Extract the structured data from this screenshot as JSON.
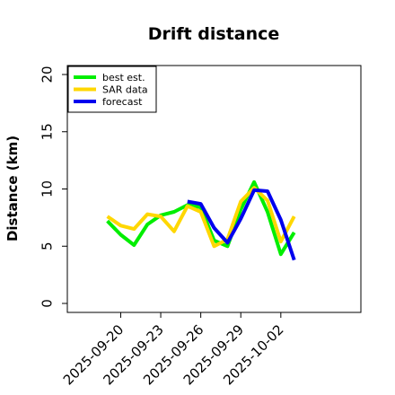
{
  "chart_data": {
    "type": "line",
    "title": "Drift distance",
    "ylabel": "Distance (km)",
    "xlabel": "",
    "ylim": [
      0,
      20
    ],
    "yticks": [
      0,
      5,
      10,
      15,
      20
    ],
    "xlim": [
      "2025-09-16",
      "2025-10-08"
    ],
    "xticks": [
      "2025-09-20",
      "2025-09-23",
      "2025-09-26",
      "2025-09-29",
      "2025-10-02"
    ],
    "grid": false,
    "legend_position": "top-left",
    "series": [
      {
        "name": "best est.",
        "color": "#00ee00",
        "points": [
          [
            "2025-09-19",
            7.2
          ],
          [
            "2025-09-20",
            6.0
          ],
          [
            "2025-09-21",
            5.1
          ],
          [
            "2025-09-22",
            6.9
          ],
          [
            "2025-09-23",
            7.7
          ],
          [
            "2025-09-24",
            8.0
          ],
          [
            "2025-09-25",
            8.6
          ],
          [
            "2025-09-26",
            8.4
          ],
          [
            "2025-09-27",
            5.5
          ],
          [
            "2025-09-28",
            5.0
          ],
          [
            "2025-09-29",
            8.2
          ],
          [
            "2025-09-30",
            10.6
          ],
          [
            "2025-10-01",
            8.0
          ],
          [
            "2025-10-02",
            4.3
          ],
          [
            "2025-10-03",
            6.2
          ]
        ]
      },
      {
        "name": "SAR data",
        "color": "#ffd700",
        "points": [
          [
            "2025-09-19",
            7.6
          ],
          [
            "2025-09-20",
            6.8
          ],
          [
            "2025-09-21",
            6.5
          ],
          [
            "2025-09-22",
            7.8
          ],
          [
            "2025-09-23",
            7.6
          ],
          [
            "2025-09-24",
            6.3
          ],
          [
            "2025-09-25",
            8.5
          ],
          [
            "2025-09-26",
            8.0
          ],
          [
            "2025-09-27",
            5.0
          ],
          [
            "2025-09-28",
            5.6
          ],
          [
            "2025-09-29",
            8.9
          ],
          [
            "2025-09-30",
            10.1
          ],
          [
            "2025-10-01",
            9.0
          ],
          [
            "2025-10-02",
            5.4
          ],
          [
            "2025-10-03",
            7.6
          ]
        ]
      },
      {
        "name": "forecast",
        "color": "#0000ee",
        "points": [
          [
            "2025-09-25",
            8.9
          ],
          [
            "2025-09-26",
            8.7
          ],
          [
            "2025-09-27",
            6.6
          ],
          [
            "2025-09-28",
            5.3
          ],
          [
            "2025-09-29",
            7.4
          ],
          [
            "2025-09-30",
            9.9
          ],
          [
            "2025-10-01",
            9.8
          ],
          [
            "2025-10-02",
            7.3
          ],
          [
            "2025-10-03",
            3.8
          ]
        ]
      }
    ]
  }
}
